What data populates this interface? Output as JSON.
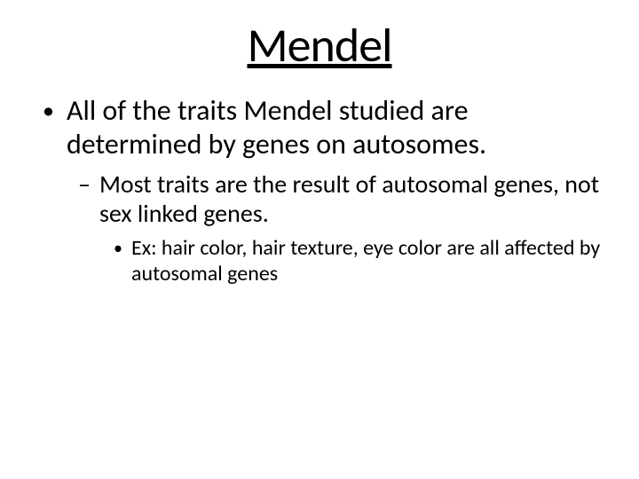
{
  "slide": {
    "title": "Mendel",
    "title_fontsize": 54,
    "title_underline": true,
    "background_color": "#ffffff",
    "text_color": "#000000",
    "font_family": "Calibri",
    "bullets": {
      "level1": {
        "marker": "•",
        "fontsize": 32,
        "text": "All of the traits Mendel studied are determined by genes on autosomes."
      },
      "level2": {
        "marker": "–",
        "fontsize": 28,
        "text": "Most traits are the result of autosomal genes, not sex linked genes."
      },
      "level3": {
        "marker": "•",
        "fontsize": 24,
        "text": "Ex:  hair color, hair texture, eye color are all affected by autosomal genes"
      }
    }
  }
}
